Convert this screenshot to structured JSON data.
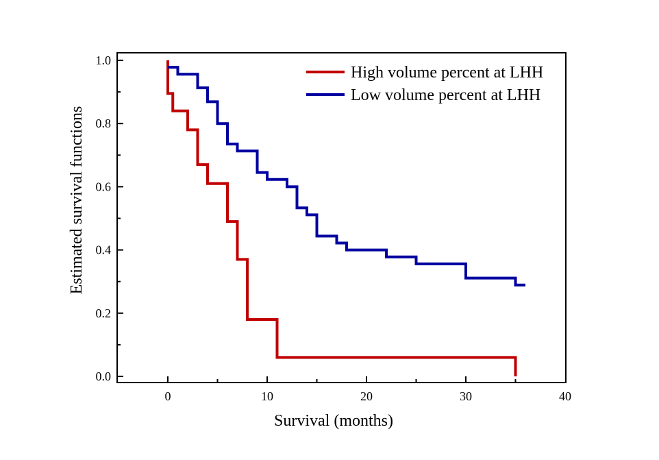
{
  "chart_data": {
    "type": "line",
    "subtype": "step",
    "title": "",
    "xlabel": "Survival (months)",
    "ylabel": "Estimated survival functions",
    "xlim": [
      -5,
      40
    ],
    "ylim": [
      -0.02,
      1.024
    ],
    "xticks": [
      0,
      10,
      20,
      30,
      40
    ],
    "xtick_labels": [
      "0",
      "10",
      "20",
      "30",
      "40"
    ],
    "yticks": [
      0.0,
      0.2,
      0.4,
      0.6,
      0.8,
      1.0
    ],
    "ytick_labels": [
      "0.0",
      "0.2",
      "0.4",
      "0.6",
      "0.8",
      "1.0"
    ],
    "grid": false,
    "legend_position": "top-right",
    "series": [
      {
        "name": "High volume percent at LHH",
        "color": "#c00000",
        "x": [
          0,
          0,
          0.5,
          2,
          3,
          4,
          6,
          7,
          8,
          11,
          35,
          35
        ],
        "y": [
          1.0,
          0.895,
          0.84,
          0.78,
          0.67,
          0.61,
          0.49,
          0.37,
          0.18,
          0.06,
          0.06,
          0.0
        ]
      },
      {
        "name": "Low volume percent at LHH",
        "color": "#0000a0",
        "x": [
          0,
          1,
          3,
          4,
          5,
          6,
          7,
          9,
          10,
          12,
          13,
          14,
          15,
          17,
          18,
          22,
          25,
          30,
          35,
          36
        ],
        "y": [
          0.978,
          0.956,
          0.913,
          0.869,
          0.8,
          0.735,
          0.713,
          0.645,
          0.623,
          0.6,
          0.533,
          0.511,
          0.444,
          0.422,
          0.4,
          0.378,
          0.356,
          0.311,
          0.289,
          0.289
        ]
      }
    ]
  }
}
